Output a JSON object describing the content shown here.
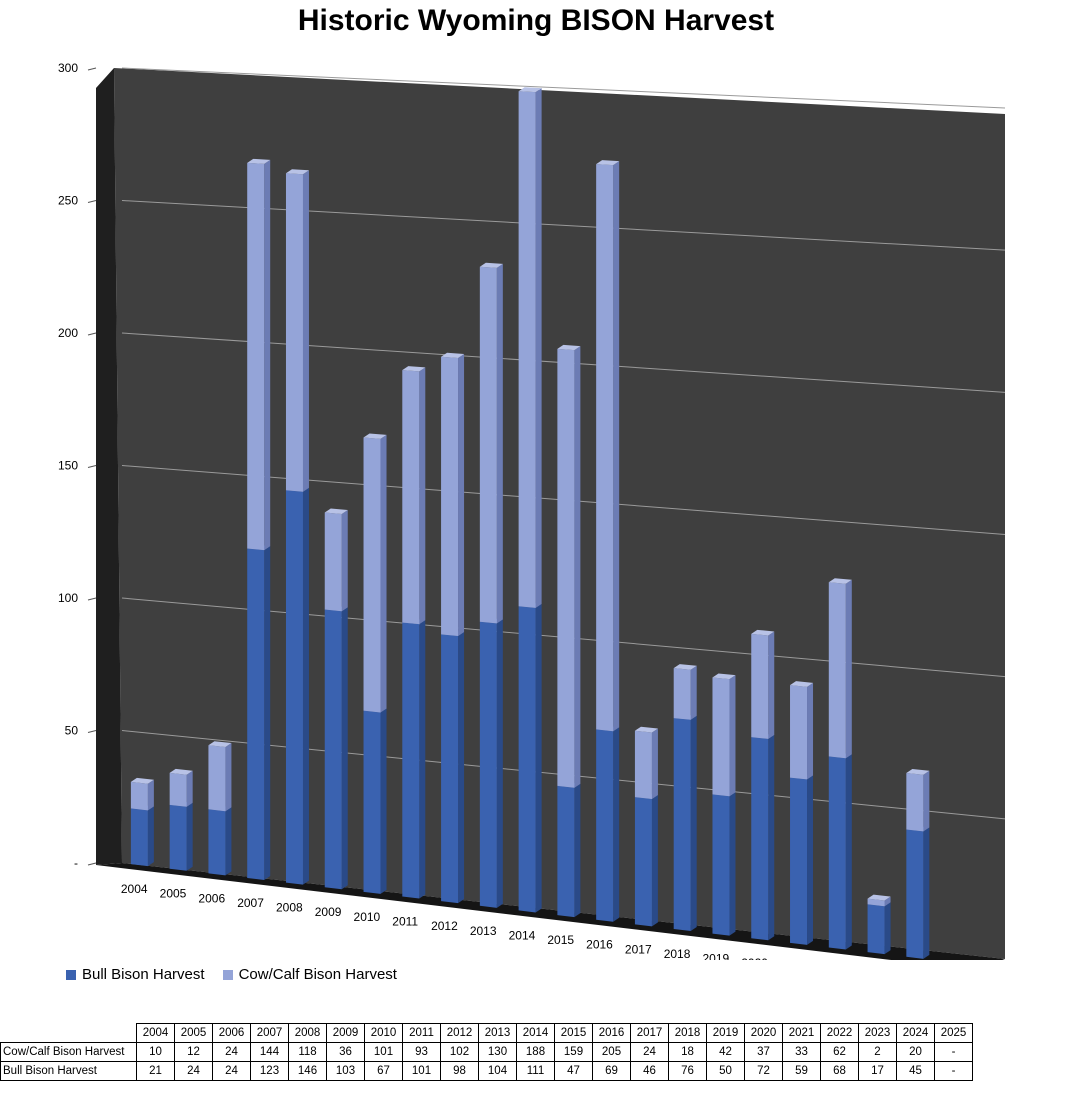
{
  "chart_data": {
    "type": "bar",
    "stacked": true,
    "three_d": true,
    "title": "Historic Wyoming BISON Harvest",
    "categories": [
      "2004",
      "2005",
      "2006",
      "2007",
      "2008",
      "2009",
      "2010",
      "2011",
      "2012",
      "2013",
      "2014",
      "2015",
      "2016",
      "2017",
      "2018",
      "2019",
      "2020",
      "2021",
      "2022",
      "2023",
      "2024",
      "2025"
    ],
    "series": [
      {
        "name": "Bull Bison Harvest",
        "color": "#3a62b0",
        "values": [
          21,
          24,
          24,
          123,
          146,
          103,
          67,
          101,
          98,
          104,
          111,
          47,
          69,
          46,
          76,
          50,
          72,
          59,
          68,
          17,
          45,
          null
        ],
        "labels": [
          "21",
          "24",
          "24",
          "123",
          "146",
          "103",
          "67",
          "101",
          "98",
          "104",
          "111",
          "47",
          "69",
          "46",
          "76",
          "50",
          "72",
          "59",
          "68",
          "17",
          "45",
          "-"
        ]
      },
      {
        "name": "Cow/Calf Bison Harvest",
        "color": "#94a4d8",
        "values": [
          10,
          12,
          24,
          144,
          118,
          36,
          101,
          93,
          102,
          130,
          188,
          159,
          205,
          24,
          18,
          42,
          37,
          33,
          62,
          2,
          20,
          null
        ],
        "labels": [
          "10",
          "12",
          "24",
          "144",
          "118",
          "36",
          "101",
          "93",
          "102",
          "130",
          "188",
          "159",
          "205",
          "24",
          "18",
          "42",
          "37",
          "33",
          "62",
          "2",
          "20",
          "-"
        ]
      }
    ],
    "y_ticks": [
      "300",
      "250",
      "200",
      "150",
      "100",
      "50",
      "-"
    ],
    "ylim": [
      0,
      300
    ],
    "grid": true,
    "legend": "bottom-left",
    "plot_background": "#3f3f3f"
  }
}
